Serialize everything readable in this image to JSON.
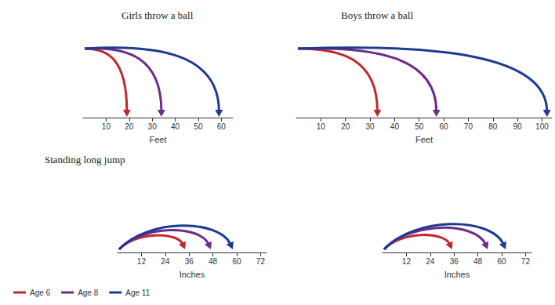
{
  "chart_data": [
    {
      "type": "arc",
      "title": "Girls throw a ball",
      "x_label": "Feet",
      "xlim": [
        0,
        65
      ],
      "xticks": [
        10,
        20,
        30,
        40,
        50,
        60
      ],
      "legend": "lower left",
      "series": [
        {
          "name": "Age 6",
          "color": "#c0282d",
          "values": [
            19
          ]
        },
        {
          "name": "Age 8",
          "color": "#6b2c8c",
          "values": [
            34
          ]
        },
        {
          "name": "Age 11",
          "color": "#1f3a93",
          "values": [
            59
          ]
        }
      ]
    },
    {
      "type": "arc",
      "title": "Boys throw a ball",
      "x_label": "Feet",
      "xlim": [
        0,
        104
      ],
      "xticks": [
        10,
        20,
        30,
        40,
        50,
        60,
        70,
        80,
        90,
        100
      ],
      "legend": "lower left",
      "series": [
        {
          "name": "Age 6",
          "color": "#c0282d",
          "values": [
            33
          ]
        },
        {
          "name": "Age 8",
          "color": "#6b2c8c",
          "values": [
            57
          ]
        },
        {
          "name": "Age 11",
          "color": "#1f3a93",
          "values": [
            102
          ]
        }
      ]
    },
    {
      "type": "arc",
      "title": "Standing long jump",
      "x_label": "Inches",
      "xlim": [
        0,
        75
      ],
      "xticks": [
        12,
        24,
        36,
        48,
        60,
        72
      ],
      "legend": "lower left",
      "series": [
        {
          "name": "Age 6",
          "color": "#c0282d",
          "values": [
            34
          ]
        },
        {
          "name": "Age 8",
          "color": "#6b2c8c",
          "values": [
            47
          ]
        },
        {
          "name": "Age 11",
          "color": "#1f3a93",
          "values": [
            58
          ]
        }
      ]
    },
    {
      "type": "arc",
      "x_label": "Inches",
      "xlim": [
        0,
        75
      ],
      "xticks": [
        12,
        24,
        36,
        48,
        60,
        72
      ],
      "legend": "lower left",
      "series": [
        {
          "name": "Age 6",
          "color": "#c0282d",
          "values": [
            35
          ]
        },
        {
          "name": "Age 8",
          "color": "#6b2c8c",
          "values": [
            53
          ]
        },
        {
          "name": "Age 11",
          "color": "#1f3a93",
          "values": [
            62
          ]
        }
      ]
    }
  ]
}
